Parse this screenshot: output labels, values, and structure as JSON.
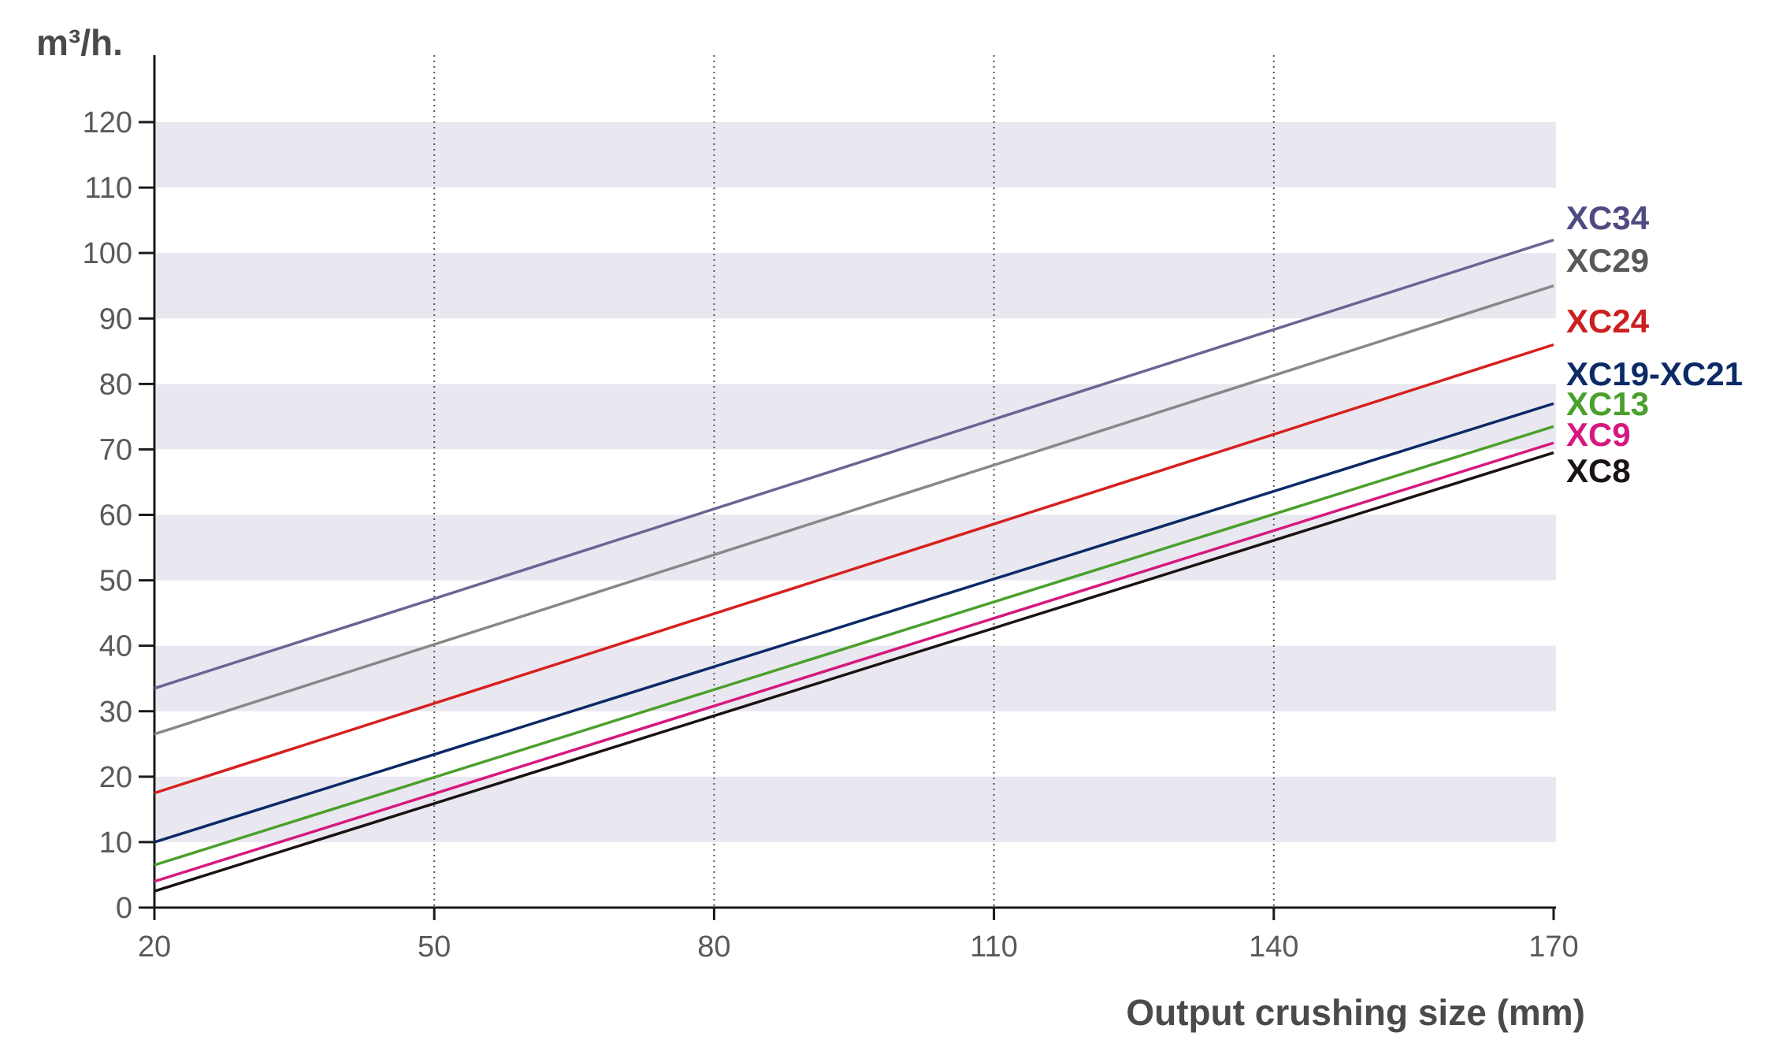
{
  "chart_data": {
    "type": "line",
    "title": "",
    "xlabel": "Output crushing size (mm)",
    "ylabel": "m³/h.",
    "xlim": [
      20,
      170
    ],
    "ylim": [
      0,
      120
    ],
    "x_ticks": [
      20,
      50,
      80,
      110,
      140,
      170
    ],
    "y_ticks": [
      0,
      10,
      20,
      30,
      40,
      50,
      60,
      70,
      80,
      90,
      100,
      110,
      120
    ],
    "grid": {
      "x_vertical_dotted": true,
      "y_alternating_bands": true,
      "band_color": "#e9e8f0"
    },
    "legend": "right-end labels",
    "series": [
      {
        "name": "XC34",
        "color": "#6b6494",
        "label_color": "#4f4b82",
        "x": [
          20,
          170
        ],
        "y": [
          33.5,
          102
        ]
      },
      {
        "name": "XC29",
        "color": "#888888",
        "label_color": "#595959",
        "x": [
          20,
          170
        ],
        "y": [
          26.5,
          95
        ]
      },
      {
        "name": "XC24",
        "color": "#d7201f",
        "label_color": "#cc1f1f",
        "x": [
          20,
          170
        ],
        "y": [
          17.5,
          86
        ]
      },
      {
        "name": "XC19-XC21",
        "color": "#0c2a66",
        "label_color": "#0c2a66",
        "x": [
          20,
          170
        ],
        "y": [
          10,
          77
        ]
      },
      {
        "name": "XC13",
        "color": "#4aa02c",
        "label_color": "#4aa02c",
        "x": [
          20,
          170
        ],
        "y": [
          6.5,
          73.5
        ]
      },
      {
        "name": "XC9",
        "color": "#d6187f",
        "label_color": "#d6187f",
        "x": [
          20,
          170
        ],
        "y": [
          4,
          71
        ]
      },
      {
        "name": "XC8",
        "color": "#1a1311",
        "label_color": "#1a1311",
        "x": [
          20,
          170
        ],
        "y": [
          2.5,
          69.5
        ]
      }
    ]
  }
}
